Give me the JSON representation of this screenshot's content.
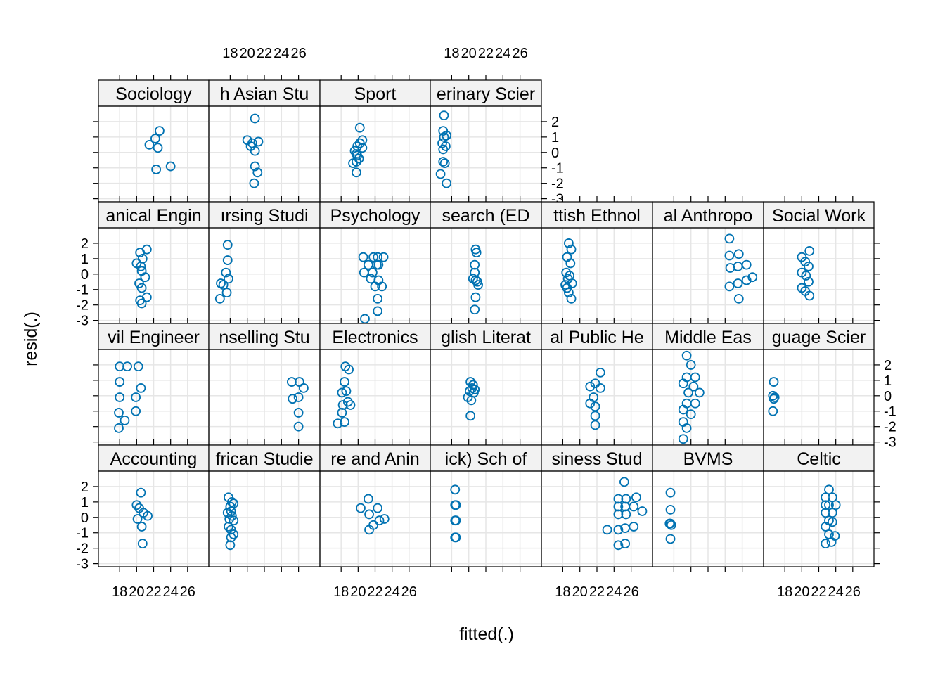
{
  "chart_data": {
    "type": "scatter",
    "title": "",
    "xlabel": "fitted(.)",
    "ylabel": "resid(.)",
    "xlim": [
      15.5,
      28.5
    ],
    "ylim": [
      -3.2,
      3.0
    ],
    "xticks": [
      18,
      20,
      22,
      24,
      26
    ],
    "xtick_labels": [
      "18",
      "20",
      "22",
      "24",
      "26"
    ],
    "yticks": [
      -3,
      -2,
      -1,
      0,
      1,
      2
    ],
    "ytick_labels": [
      "-3",
      "-2",
      "-1",
      "0",
      "1",
      "2"
    ],
    "point_color": "#0072b2",
    "strip_fill": "#f2f2f2",
    "grid_color": "#e6e6e6",
    "panels": [
      {
        "label": "Sociology",
        "row": 3,
        "col": 0,
        "points": [
          [
            21.5,
            0.5
          ],
          [
            22.2,
            0.9
          ],
          [
            22.7,
            1.4
          ],
          [
            22.5,
            0.3
          ],
          [
            22.3,
            -1.1
          ],
          [
            24.0,
            -0.9
          ]
        ]
      },
      {
        "label": "h Asian Stu",
        "row": 3,
        "col": 1,
        "points": [
          [
            20.9,
            2.2
          ],
          [
            20.0,
            0.8
          ],
          [
            21.3,
            0.7
          ],
          [
            20.6,
            0.6
          ],
          [
            20.4,
            0.4
          ],
          [
            20.9,
            0.1
          ],
          [
            20.9,
            -0.9
          ],
          [
            21.2,
            -1.3
          ],
          [
            20.8,
            -2.0
          ]
        ]
      },
      {
        "label": "Sport",
        "row": 3,
        "col": 2,
        "points": [
          [
            20.2,
            1.6
          ],
          [
            20.5,
            0.8
          ],
          [
            20.2,
            0.6
          ],
          [
            20.5,
            0.3
          ],
          [
            19.9,
            0.4
          ],
          [
            19.6,
            0.1
          ],
          [
            19.8,
            -0.1
          ],
          [
            19.9,
            -0.2
          ],
          [
            20.1,
            -0.4
          ],
          [
            19.8,
            -0.6
          ],
          [
            19.4,
            -0.7
          ],
          [
            19.8,
            -1.3
          ]
        ]
      },
      {
        "label": "erinary Scier",
        "row": 3,
        "col": 3,
        "points": [
          [
            17.1,
            2.4
          ],
          [
            17.0,
            1.4
          ],
          [
            17.4,
            1.1
          ],
          [
            17.1,
            1.0
          ],
          [
            16.9,
            0.6
          ],
          [
            17.3,
            0.4
          ],
          [
            17.0,
            0.2
          ],
          [
            17.0,
            -0.6
          ],
          [
            17.2,
            -0.7
          ],
          [
            16.7,
            -1.4
          ],
          [
            17.4,
            -2.0
          ]
        ]
      },
      {
        "label": "anical Engin",
        "row": 2,
        "col": 0,
        "points": [
          [
            21.2,
            1.6
          ],
          [
            20.4,
            1.4
          ],
          [
            20.7,
            1.0
          ],
          [
            20.0,
            0.7
          ],
          [
            20.5,
            0.5
          ],
          [
            20.6,
            0.2
          ],
          [
            21.0,
            -0.2
          ],
          [
            20.3,
            -0.6
          ],
          [
            20.6,
            -0.9
          ],
          [
            21.2,
            -1.5
          ],
          [
            20.4,
            -1.7
          ],
          [
            20.6,
            -1.9
          ]
        ]
      },
      {
        "label": "ırsing Studi",
        "row": 2,
        "col": 1,
        "points": [
          [
            17.7,
            1.9
          ],
          [
            17.7,
            0.9
          ],
          [
            17.5,
            0.1
          ],
          [
            17.8,
            -0.3
          ],
          [
            16.9,
            -0.6
          ],
          [
            17.2,
            -0.7
          ],
          [
            17.6,
            -1.2
          ],
          [
            16.8,
            -1.6
          ]
        ]
      },
      {
        "label": "Psychology",
        "row": 2,
        "col": 2,
        "points": [
          [
            20.6,
            1.1
          ],
          [
            21.8,
            1.1
          ],
          [
            22.3,
            1.1
          ],
          [
            23.0,
            1.1
          ],
          [
            21.2,
            0.6
          ],
          [
            22.2,
            0.6
          ],
          [
            22.4,
            0.6
          ],
          [
            20.7,
            0.1
          ],
          [
            21.7,
            0.1
          ],
          [
            21.5,
            -0.3
          ],
          [
            22.4,
            -0.4
          ],
          [
            22.0,
            -0.8
          ],
          [
            22.8,
            -0.8
          ],
          [
            22.3,
            -1.6
          ],
          [
            22.3,
            -2.4
          ],
          [
            20.8,
            -2.9
          ]
        ]
      },
      {
        "label": "search (ED",
        "row": 2,
        "col": 3,
        "points": [
          [
            20.8,
            1.6
          ],
          [
            20.9,
            1.4
          ],
          [
            20.7,
            0.6
          ],
          [
            20.7,
            0.1
          ],
          [
            20.5,
            -0.3
          ],
          [
            20.8,
            -0.4
          ],
          [
            21.0,
            -0.5
          ],
          [
            21.1,
            -0.7
          ],
          [
            20.8,
            -1.5
          ],
          [
            20.7,
            -2.3
          ]
        ]
      },
      {
        "label": "ttish Ethnol",
        "row": 2,
        "col": 4,
        "points": [
          [
            18.7,
            2.0
          ],
          [
            19.0,
            1.6
          ],
          [
            18.5,
            1.1
          ],
          [
            18.9,
            0.7
          ],
          [
            18.4,
            0.1
          ],
          [
            18.8,
            -0.1
          ],
          [
            18.6,
            -0.3
          ],
          [
            19.1,
            -0.6
          ],
          [
            18.3,
            -0.7
          ],
          [
            18.5,
            -0.9
          ],
          [
            18.7,
            -1.2
          ],
          [
            19.0,
            -1.6
          ]
        ]
      },
      {
        "label": "al Anthropo",
        "row": 2,
        "col": 5,
        "points": [
          [
            24.5,
            2.3
          ],
          [
            24.5,
            1.2
          ],
          [
            25.6,
            1.3
          ],
          [
            24.6,
            0.4
          ],
          [
            25.5,
            0.5
          ],
          [
            26.5,
            0.6
          ],
          [
            24.5,
            -0.8
          ],
          [
            25.5,
            -0.6
          ],
          [
            26.5,
            -0.4
          ],
          [
            27.2,
            -0.2
          ],
          [
            25.6,
            -1.6
          ]
        ]
      },
      {
        "label": "Social Work",
        "row": 2,
        "col": 6,
        "points": [
          [
            20.0,
            1.1
          ],
          [
            20.9,
            1.5
          ],
          [
            20.4,
            0.8
          ],
          [
            20.8,
            0.5
          ],
          [
            20.0,
            0.1
          ],
          [
            20.5,
            -0.1
          ],
          [
            20.8,
            -0.5
          ],
          [
            20.0,
            -0.9
          ],
          [
            20.4,
            -1.1
          ],
          [
            20.9,
            -1.4
          ]
        ]
      },
      {
        "label": "vil Engineer",
        "row": 1,
        "col": 0,
        "points": [
          [
            18.0,
            1.9
          ],
          [
            18.9,
            1.9
          ],
          [
            20.2,
            1.9
          ],
          [
            18.0,
            0.9
          ],
          [
            20.5,
            0.5
          ],
          [
            18.0,
            -0.1
          ],
          [
            19.9,
            -0.1
          ],
          [
            17.9,
            -1.1
          ],
          [
            19.9,
            -1.0
          ],
          [
            18.6,
            -1.6
          ],
          [
            17.9,
            -2.1
          ]
        ]
      },
      {
        "label": "nselling Stu",
        "row": 1,
        "col": 1,
        "points": [
          [
            25.2,
            0.9
          ],
          [
            26.1,
            0.9
          ],
          [
            26.6,
            0.5
          ],
          [
            25.3,
            -0.2
          ],
          [
            26.0,
            -0.1
          ],
          [
            26.0,
            -1.1
          ],
          [
            26.0,
            -2.0
          ]
        ]
      },
      {
        "label": "Electronics",
        "row": 1,
        "col": 2,
        "points": [
          [
            18.5,
            1.9
          ],
          [
            18.9,
            1.7
          ],
          [
            18.4,
            0.9
          ],
          [
            18.1,
            0.2
          ],
          [
            18.6,
            0.3
          ],
          [
            18.8,
            -0.4
          ],
          [
            18.2,
            -0.6
          ],
          [
            19.1,
            -0.6
          ],
          [
            18.1,
            -1.1
          ],
          [
            17.6,
            -1.8
          ],
          [
            18.4,
            -1.7
          ]
        ]
      },
      {
        "label": "glish Literat",
        "row": 1,
        "col": 3,
        "points": [
          [
            20.2,
            0.9
          ],
          [
            20.5,
            0.7
          ],
          [
            20.4,
            0.5
          ],
          [
            20.7,
            0.4
          ],
          [
            20.1,
            0.3
          ],
          [
            20.6,
            0.2
          ],
          [
            19.9,
            -0.1
          ],
          [
            20.3,
            -0.3
          ],
          [
            20.2,
            -1.3
          ]
        ]
      },
      {
        "label": "al Public He",
        "row": 1,
        "col": 4,
        "points": [
          [
            22.4,
            1.5
          ],
          [
            21.2,
            0.6
          ],
          [
            21.8,
            0.8
          ],
          [
            22.4,
            0.5
          ],
          [
            21.6,
            -0.1
          ],
          [
            21.2,
            -0.5
          ],
          [
            21.8,
            -0.7
          ],
          [
            21.8,
            -1.3
          ],
          [
            21.8,
            -1.9
          ]
        ]
      },
      {
        "label": "Middle Eas",
        "row": 1,
        "col": 5,
        "points": [
          [
            19.5,
            2.6
          ],
          [
            20.0,
            2.0
          ],
          [
            19.5,
            1.2
          ],
          [
            20.5,
            1.2
          ],
          [
            19.1,
            0.8
          ],
          [
            20.3,
            0.6
          ],
          [
            19.7,
            0.2
          ],
          [
            21.0,
            0.2
          ],
          [
            19.5,
            -0.5
          ],
          [
            20.5,
            -0.5
          ],
          [
            19.1,
            -0.9
          ],
          [
            20.0,
            -1.2
          ],
          [
            19.1,
            -1.7
          ],
          [
            19.5,
            -2.1
          ],
          [
            19.1,
            -2.8
          ]
        ]
      },
      {
        "label": "guage Scier",
        "row": 1,
        "col": 6,
        "points": [
          [
            16.7,
            0.9
          ],
          [
            16.6,
            0.0
          ],
          [
            16.8,
            -0.1
          ],
          [
            16.7,
            -0.2
          ],
          [
            16.6,
            -1.0
          ]
        ]
      },
      {
        "label": "Accounting",
        "row": 0,
        "col": 0,
        "points": [
          [
            20.5,
            1.6
          ],
          [
            20.0,
            0.8
          ],
          [
            20.3,
            0.6
          ],
          [
            20.8,
            0.3
          ],
          [
            21.3,
            0.1
          ],
          [
            20.1,
            -0.1
          ],
          [
            20.6,
            -0.6
          ],
          [
            20.7,
            -1.7
          ]
        ]
      },
      {
        "label": "frican Studie",
        "row": 0,
        "col": 1,
        "points": [
          [
            17.8,
            1.3
          ],
          [
            18.2,
            1.0
          ],
          [
            18.4,
            0.9
          ],
          [
            18.0,
            0.7
          ],
          [
            17.7,
            0.3
          ],
          [
            18.1,
            0.4
          ],
          [
            18.2,
            0.1
          ],
          [
            17.9,
            -0.1
          ],
          [
            18.4,
            -0.2
          ],
          [
            17.8,
            -0.6
          ],
          [
            18.1,
            -0.8
          ],
          [
            18.4,
            -1.1
          ],
          [
            18.1,
            -1.3
          ],
          [
            18.0,
            -1.8
          ]
        ]
      },
      {
        "label": "re and Anin",
        "row": 0,
        "col": 2,
        "points": [
          [
            21.2,
            1.2
          ],
          [
            20.3,
            0.6
          ],
          [
            22.3,
            0.6
          ],
          [
            21.3,
            0.2
          ],
          [
            22.5,
            -0.2
          ],
          [
            21.8,
            -0.5
          ],
          [
            23.1,
            -0.1
          ],
          [
            21.3,
            -0.8
          ]
        ]
      },
      {
        "label": "ick) Sch of",
        "row": 0,
        "col": 3,
        "points": [
          [
            18.4,
            1.8
          ],
          [
            18.4,
            0.8
          ],
          [
            18.5,
            0.8
          ],
          [
            18.4,
            -0.2
          ],
          [
            18.5,
            -0.2
          ],
          [
            18.4,
            -1.3
          ],
          [
            18.5,
            -1.3
          ]
        ]
      },
      {
        "label": "siness Stud",
        "row": 0,
        "col": 4,
        "points": [
          [
            25.2,
            2.3
          ],
          [
            24.5,
            1.2
          ],
          [
            25.4,
            1.2
          ],
          [
            26.6,
            1.3
          ],
          [
            24.5,
            0.7
          ],
          [
            25.3,
            0.7
          ],
          [
            26.3,
            0.7
          ],
          [
            24.5,
            0.2
          ],
          [
            25.4,
            0.2
          ],
          [
            27.3,
            0.4
          ],
          [
            23.2,
            -0.8
          ],
          [
            24.5,
            -0.8
          ],
          [
            25.3,
            -0.7
          ],
          [
            26.3,
            -0.6
          ],
          [
            24.5,
            -1.8
          ],
          [
            25.3,
            -1.7
          ]
        ]
      },
      {
        "label": "BVMS",
        "row": 0,
        "col": 5,
        "points": [
          [
            17.6,
            1.6
          ],
          [
            17.6,
            0.5
          ],
          [
            17.6,
            -0.4
          ],
          [
            17.7,
            -0.5
          ],
          [
            17.5,
            -0.4
          ],
          [
            17.6,
            -1.4
          ]
        ]
      },
      {
        "label": "Celtic",
        "row": 0,
        "col": 6,
        "points": [
          [
            23.2,
            1.8
          ],
          [
            22.8,
            1.3
          ],
          [
            23.6,
            1.3
          ],
          [
            23.2,
            0.8
          ],
          [
            22.8,
            0.8
          ],
          [
            24.0,
            0.8
          ],
          [
            23.6,
            0.3
          ],
          [
            22.8,
            0.3
          ],
          [
            23.2,
            -0.2
          ],
          [
            23.6,
            -0.3
          ],
          [
            22.8,
            -0.6
          ],
          [
            23.2,
            -1.1
          ],
          [
            23.9,
            -1.2
          ],
          [
            22.8,
            -1.7
          ],
          [
            23.5,
            -1.6
          ]
        ]
      }
    ]
  }
}
